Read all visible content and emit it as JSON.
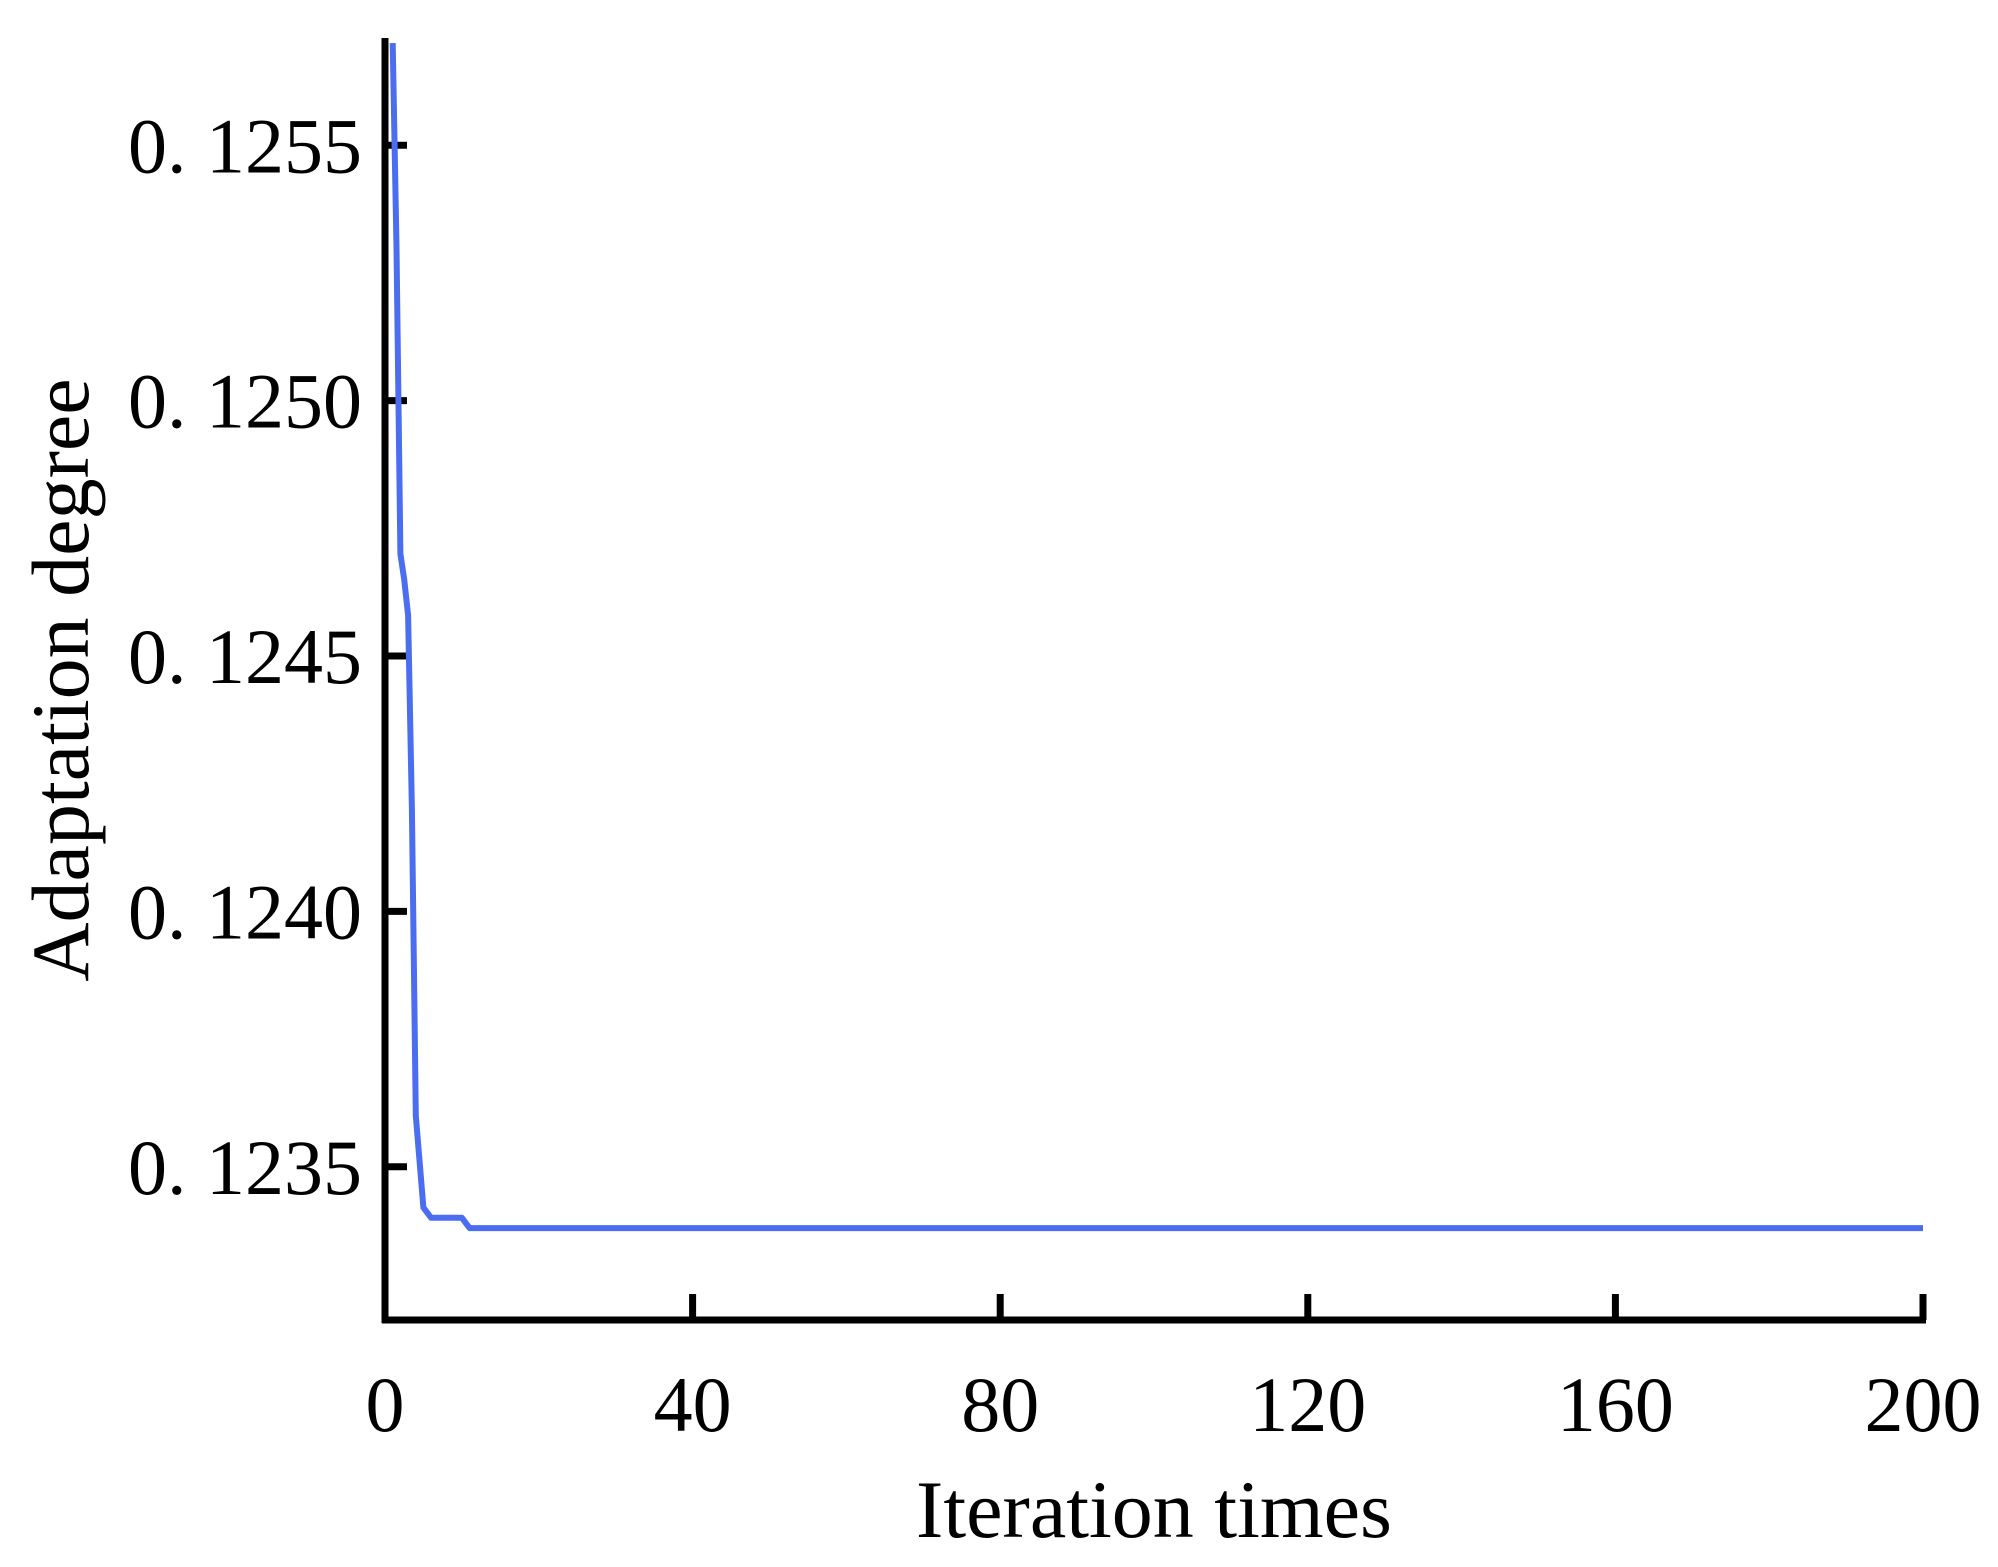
{
  "chart_data": {
    "type": "line",
    "title": "",
    "xlabel": "Iteration times",
    "ylabel": "Adaptation degree",
    "xlim": [
      0,
      200
    ],
    "ylim": [
      0.1232,
      0.12571
    ],
    "x_ticks": [
      0,
      40,
      80,
      120,
      160,
      200
    ],
    "x_tick_labels": [
      "0",
      "40",
      "80",
      "120",
      "160",
      "200"
    ],
    "y_ticks": [
      0.1235,
      0.124,
      0.1245,
      0.125,
      0.1255
    ],
    "y_tick_labels": [
      "0. 1235",
      "0. 1240",
      "0. 1245",
      "0. 1250",
      "0. 1255"
    ],
    "grid": false,
    "line_color": "#4b6df0",
    "axis_color": "#000000",
    "series": [
      {
        "x": [
          1,
          1.5,
          2,
          2.5,
          3,
          3.5,
          4,
          5,
          6,
          8,
          10,
          11,
          200
        ],
        "y": [
          0.1257,
          0.1253,
          0.1247,
          0.12465,
          0.12458,
          0.1242,
          0.1236,
          0.12342,
          0.1234,
          0.1234,
          0.1234,
          0.12338,
          0.12338
        ]
      }
    ]
  }
}
